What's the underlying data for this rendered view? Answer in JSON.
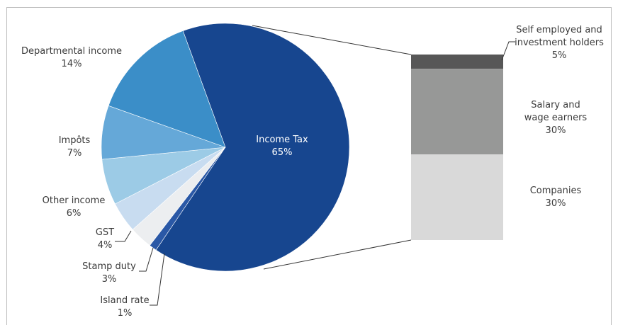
{
  "chart_data": {
    "type": "pie",
    "slices": [
      {
        "name": "Income Tax",
        "value": 65,
        "label": "65%",
        "color": "#17468f"
      },
      {
        "name": "Island rate",
        "value": 1,
        "label": "1%",
        "color": "#2a58a6"
      },
      {
        "name": "Stamp duty",
        "value": 3,
        "label": "3%",
        "color": "#eceef0"
      },
      {
        "name": "GST",
        "value": 4,
        "label": "4%",
        "color": "#c8dcf0"
      },
      {
        "name": "Other income",
        "value": 6,
        "label": "6%",
        "color": "#9ccbe6"
      },
      {
        "name": "Impôts",
        "value": 7,
        "label": "7%",
        "color": "#65a8d8"
      },
      {
        "name": "Departmental income",
        "value": 14,
        "label": "14%",
        "color": "#3b8ec8"
      }
    ],
    "breakdown": {
      "of": "Income Tax",
      "segments": [
        {
          "name": "Self employed and investment holders",
          "lines": [
            "Self employed and",
            "investment holders"
          ],
          "value": 5,
          "label": "5%",
          "color": "#575757"
        },
        {
          "name": "Salary and wage earners",
          "lines": [
            "Salary and",
            "wage earners"
          ],
          "value": 30,
          "label": "30%",
          "color": "#979897"
        },
        {
          "name": "Companies",
          "lines": [
            "Companies"
          ],
          "value": 30,
          "label": "30%",
          "color": "#d9d9d9"
        }
      ]
    }
  }
}
